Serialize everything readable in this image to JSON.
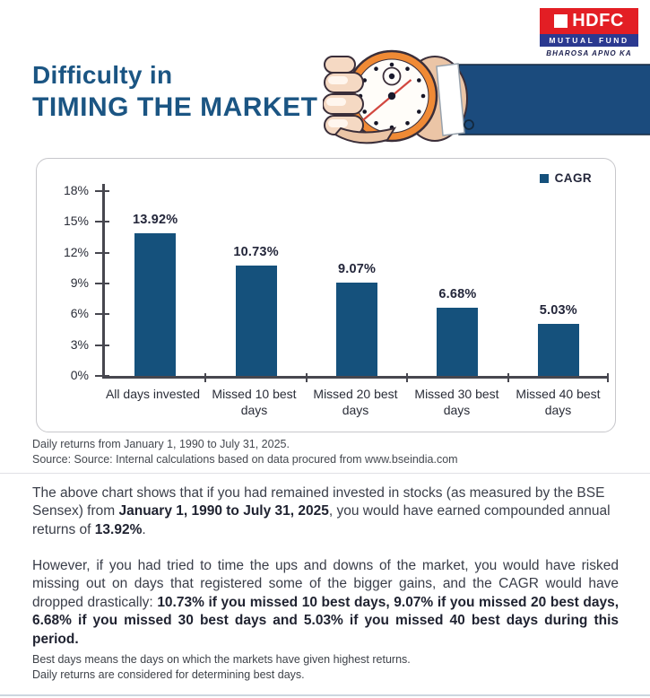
{
  "header": {
    "title_line1": "Difficulty in",
    "title_line2": "TIMING THE MARKET",
    "logo": {
      "name": "HDFC",
      "line2": "MUTUAL FUND",
      "tagline": "BHAROSA APNO KA"
    }
  },
  "chart_data": {
    "type": "bar",
    "legend": [
      "CAGR"
    ],
    "legend_position": "top-right",
    "categories": [
      "All days invested",
      "Missed 10 best days",
      "Missed 20 best days",
      "Missed 30 best days",
      "Missed 40 best days"
    ],
    "values": [
      13.92,
      10.73,
      9.07,
      6.68,
      5.03
    ],
    "value_labels": [
      "13.92%",
      "10.73%",
      "9.07%",
      "6.68%",
      "5.03%"
    ],
    "ylim": [
      0,
      18
    ],
    "ytick_labels": [
      "18%",
      "15%",
      "12%",
      "9%",
      "6%",
      "3%",
      "0%"
    ],
    "grid": false,
    "bar_color": "#15517C",
    "xlabel": "",
    "ylabel": ""
  },
  "notes": {
    "line1": "Daily returns from January 1, 1990 to July 31, 2025.",
    "line2": "Source: Source: Internal calculations based on data procured from www.bseindia.com"
  },
  "body": {
    "para1": [
      {
        "text": "The above chart shows that if you had remained invested in stocks (as measured by the BSE Sensex) from ",
        "bold": false
      },
      {
        "text": "January 1, 1990 to July 31, 2025",
        "bold": true
      },
      {
        "text": ", you would have earned compounded annual returns of ",
        "bold": false
      },
      {
        "text": "13.92%",
        "bold": true
      },
      {
        "text": ".",
        "bold": false
      }
    ],
    "para2": [
      {
        "text": "However, if you had tried to time the ups and downs of the market, you would have risked missing out on days that registered some of the bigger gains, and the CAGR would have dropped drastically: ",
        "bold": false
      },
      {
        "text": "10.73% if you missed 10 best days, 9.07% if you missed 20 best days, 6.68% if you missed 30 best days and 5.03% if you missed 40 best days during this period.",
        "bold": true
      }
    ]
  },
  "footer": {
    "line1": "Best days means the days on which the markets have given highest returns.",
    "line2": "Daily returns are considered for determining best days."
  },
  "colors": {
    "accent_blue": "#1B5583",
    "bar_blue": "#15517C",
    "axis_gray": "#47474F",
    "logo_red": "#E31E24",
    "logo_blue": "#2B3990",
    "sleeve_blue": "#1B4B7D",
    "watch_orange": "#F08A35"
  }
}
